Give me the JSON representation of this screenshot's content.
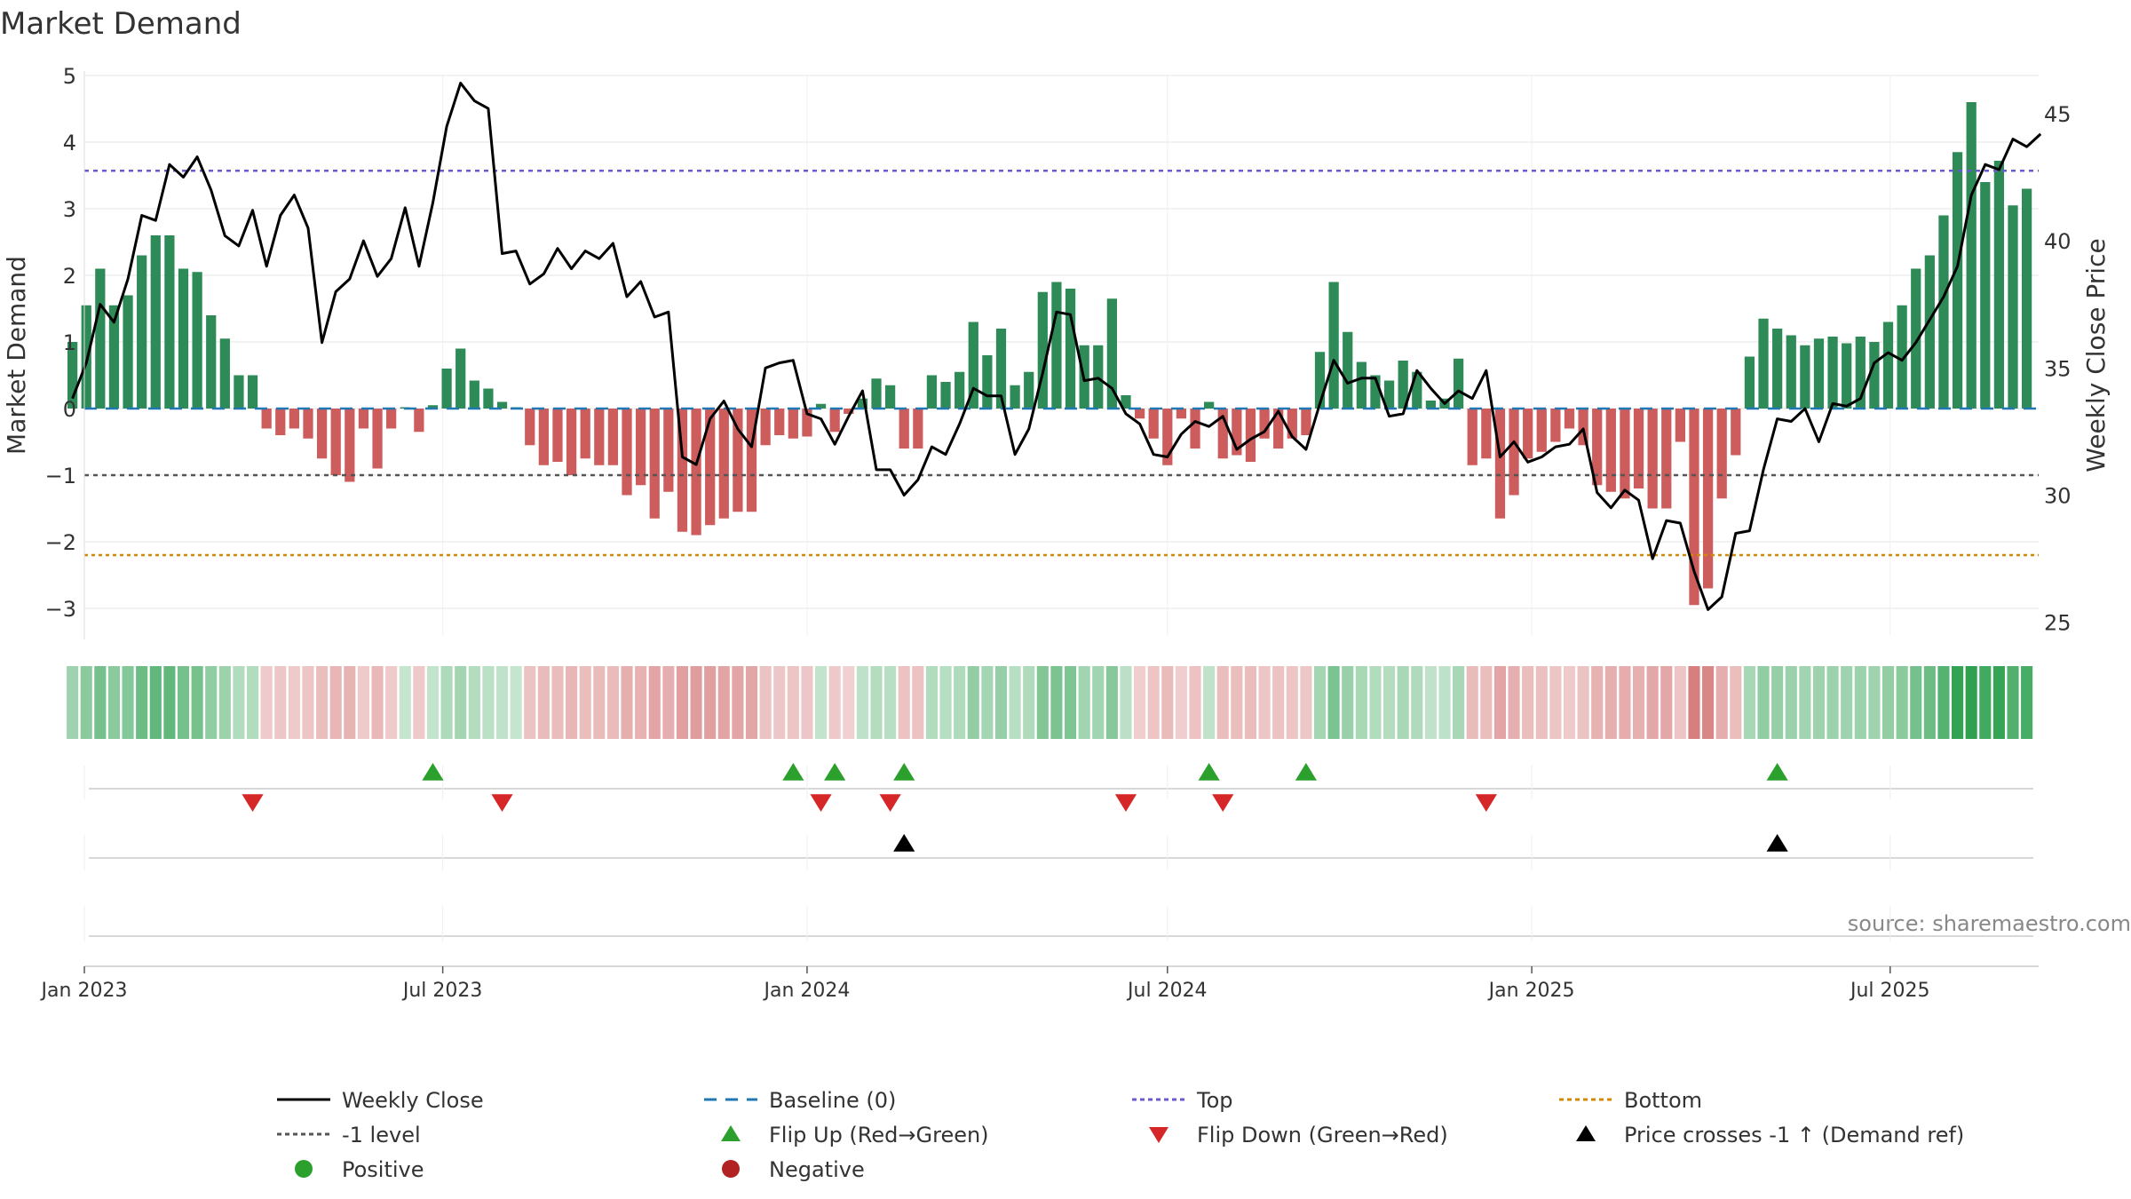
{
  "colors": {
    "positive_bar": "#2e8b57",
    "negative_bar": "#cd5c5c",
    "price_line": "#000000",
    "baseline": "#1f77b4",
    "top_line": "#6a5acd",
    "level_line": "#555555",
    "bottom_line": "#d48a00",
    "flip_up": "#2ca02c",
    "flip_down": "#d62728",
    "cross_marker": "#000000",
    "legend_positive": "#2ca02c",
    "legend_negative": "#b22222",
    "grid": "#e6e6e6",
    "source_text": "#888888"
  },
  "source": "source: sharemaestro.com",
  "chart_data": {
    "type": "bar+line",
    "title": "Market Demand",
    "ylabel": "Market Demand",
    "y2label": "Weekly Close Price",
    "ylim": [
      -3.4,
      5.0
    ],
    "y2lim": [
      24.5,
      46.5
    ],
    "yticks": [
      5,
      4,
      3,
      2,
      1,
      0,
      -1,
      -2,
      -3
    ],
    "ytick_labels": [
      "5",
      "4",
      "3",
      "2",
      "1",
      "0",
      "−1",
      "−2",
      "−3"
    ],
    "y2ticks": [
      45,
      40,
      35,
      30,
      25
    ],
    "y2tick_labels": [
      "45",
      "40",
      "35",
      "30",
      "25"
    ],
    "x_start": "2023-01-01",
    "x_end": "2025-09-14",
    "xticks": [
      {
        "label": "Jan 2023",
        "date": "2023-01-01"
      },
      {
        "label": "Jul 2023",
        "date": "2023-07-01"
      },
      {
        "label": "Jan 2024",
        "date": "2024-01-01"
      },
      {
        "label": "Jul 2024",
        "date": "2024-07-01"
      },
      {
        "label": "Jan 2025",
        "date": "2025-01-01"
      },
      {
        "label": "Jul 2025",
        "date": "2025-07-01"
      }
    ],
    "first_week": "2022-12-26",
    "demand": [
      1.0,
      1.55,
      2.1,
      1.55,
      1.7,
      2.3,
      2.6,
      2.6,
      2.1,
      2.05,
      1.4,
      1.05,
      0.5,
      0.5,
      -0.3,
      -0.4,
      -0.3,
      -0.45,
      -0.75,
      -1.0,
      -1.1,
      -0.3,
      -0.9,
      -0.3,
      0.02,
      -0.35,
      0.05,
      0.6,
      0.9,
      0.42,
      0.3,
      0.1,
      0.02,
      -0.55,
      -0.85,
      -0.8,
      -1.0,
      -0.75,
      -0.85,
      -0.85,
      -1.3,
      -1.15,
      -1.65,
      -1.25,
      -1.85,
      -1.9,
      -1.75,
      -1.65,
      -1.55,
      -1.55,
      -0.55,
      -0.4,
      -0.45,
      -0.42,
      0.07,
      -0.35,
      -0.08,
      0.15,
      0.45,
      0.35,
      -0.6,
      -0.6,
      0.5,
      0.4,
      0.55,
      1.3,
      0.8,
      1.2,
      0.35,
      0.55,
      1.75,
      1.9,
      1.8,
      0.95,
      0.95,
      1.65,
      0.2,
      -0.15,
      -0.45,
      -0.85,
      -0.15,
      -0.6,
      0.1,
      -0.75,
      -0.7,
      -0.8,
      -0.45,
      -0.6,
      -0.45,
      -0.4,
      0.85,
      1.9,
      1.15,
      0.7,
      0.5,
      0.42,
      0.72,
      0.55,
      0.12,
      0.15,
      0.75,
      -0.85,
      -0.75,
      -1.65,
      -1.3,
      -0.75,
      -0.65,
      -0.5,
      -0.3,
      -0.55,
      -1.15,
      -1.25,
      -1.35,
      -1.2,
      -1.5,
      -1.5,
      -0.5,
      -2.95,
      -2.7,
      -1.35,
      -0.7,
      0.78,
      1.35,
      1.2,
      1.1,
      0.95,
      1.05,
      1.08,
      0.98,
      1.08,
      1.0,
      1.3,
      1.55,
      2.1,
      2.3,
      2.9,
      3.85,
      4.6,
      3.4,
      3.72,
      3.05,
      3.3
    ],
    "weekly_close": [
      33.8,
      35.2,
      37.5,
      36.8,
      38.5,
      41.0,
      40.8,
      43.0,
      42.5,
      43.3,
      42.0,
      40.2,
      39.8,
      41.2,
      39.0,
      41.0,
      41.8,
      40.5,
      36.0,
      38.0,
      38.5,
      40.0,
      38.6,
      39.3,
      41.3,
      39.0,
      41.5,
      44.5,
      46.2,
      45.5,
      45.2,
      39.5,
      39.6,
      38.3,
      38.7,
      39.7,
      38.9,
      39.6,
      39.3,
      39.9,
      37.8,
      38.4,
      37.0,
      37.2,
      31.5,
      31.2,
      33.0,
      33.7,
      32.6,
      31.9,
      35.0,
      35.2,
      35.3,
      33.2,
      33.0,
      32.0,
      33.1,
      34.1,
      31.0,
      31.0,
      30.0,
      30.6,
      31.9,
      31.6,
      32.8,
      34.2,
      33.9,
      33.9,
      31.6,
      32.6,
      34.8,
      37.2,
      37.1,
      34.5,
      34.6,
      34.2,
      33.2,
      32.8,
      31.6,
      31.5,
      32.4,
      32.9,
      32.7,
      33.1,
      31.8,
      32.2,
      32.5,
      33.3,
      32.3,
      31.8,
      33.6,
      35.3,
      34.4,
      34.6,
      34.6,
      33.1,
      33.2,
      34.9,
      34.2,
      33.6,
      34.1,
      33.8,
      34.9,
      31.5,
      32.1,
      31.3,
      31.5,
      31.9,
      32.0,
      32.6,
      30.1,
      29.5,
      30.2,
      29.8,
      27.5,
      29.0,
      28.9,
      27.0,
      25.5,
      26.0,
      28.5,
      28.6,
      31.0,
      33.0,
      32.9,
      33.4,
      32.1,
      33.6,
      33.5,
      33.8,
      35.2,
      35.6,
      35.3,
      36.0,
      36.9,
      37.8,
      39.0,
      41.8,
      43.0,
      42.8,
      44.0,
      43.7,
      44.2
    ],
    "threshold_lines": [
      {
        "name": "Top",
        "value": 3.57
      },
      {
        "name": "-1 level",
        "value": -1.0
      },
      {
        "name": "Bottom",
        "value": -2.2
      },
      {
        "name": "Baseline (0)",
        "value": 0
      }
    ],
    "flip_up_dates": [
      "2023-06-26",
      "2023-12-25",
      "2024-01-15",
      "2024-02-19",
      "2024-07-22",
      "2024-09-09",
      "2025-05-05"
    ],
    "flip_down_dates": [
      "2023-03-27",
      "2023-07-31",
      "2024-01-08",
      "2024-02-12",
      "2024-06-10",
      "2024-07-29",
      "2024-12-09"
    ],
    "price_cross_dates": [
      "2024-02-19",
      "2025-05-05"
    ],
    "legend": [
      {
        "label": "Weekly Close",
        "symbol": "line-solid",
        "color": "#000000"
      },
      {
        "label": "Baseline (0)",
        "symbol": "line-dash",
        "color": "#1f77b4"
      },
      {
        "label": "Top",
        "symbol": "line-dot",
        "color": "#6a5acd"
      },
      {
        "label": "Bottom",
        "symbol": "line-dot",
        "color": "#d48a00"
      },
      {
        "label": "-1 level",
        "symbol": "line-dot",
        "color": "#555555"
      },
      {
        "label": "Flip Up (Red→Green)",
        "symbol": "triangle-up",
        "color": "#2ca02c"
      },
      {
        "label": "Flip Down (Green→Red)",
        "symbol": "triangle-down",
        "color": "#d62728"
      },
      {
        "label": "Price crosses -1 ↑ (Demand ref)",
        "symbol": "triangle-up",
        "color": "#000000"
      },
      {
        "label": "Positive",
        "symbol": "circle",
        "color": "#2ca02c"
      },
      {
        "label": "Negative",
        "symbol": "circle",
        "color": "#b22222"
      }
    ],
    "legend_position": "bottom"
  }
}
